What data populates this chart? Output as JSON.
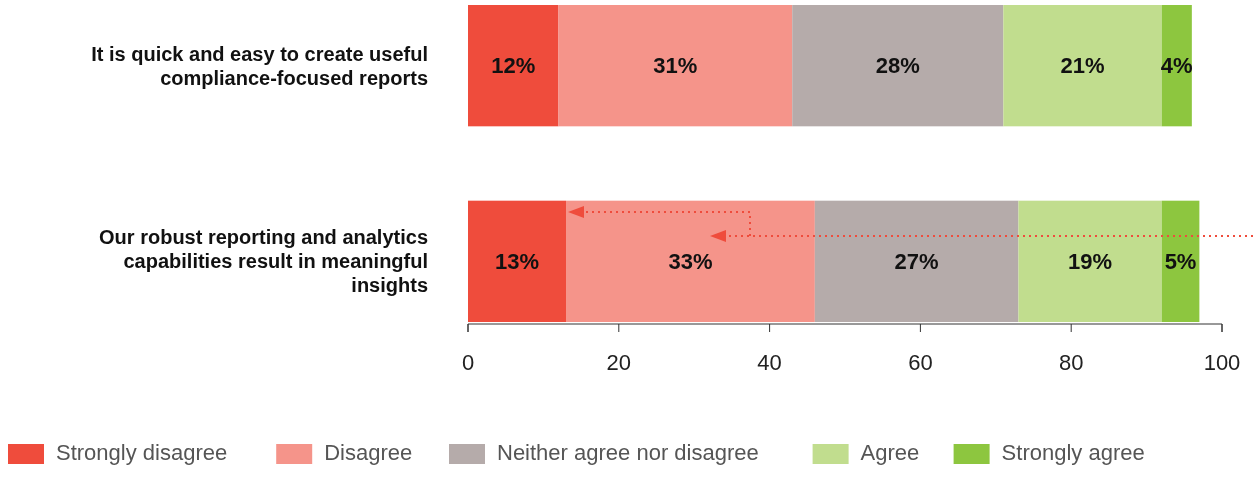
{
  "chart_data": {
    "type": "bar",
    "orientation": "horizontal",
    "stacked": true,
    "categories": [
      "It is quick and easy to create useful compliance-focused reports",
      "Our robust reporting and analytics capabilities result in meaningful insights"
    ],
    "series": [
      {
        "name": "Strongly disagree",
        "color": "#ef4c3c",
        "values": [
          12,
          13
        ],
        "value_labels": [
          "12%",
          "13%"
        ]
      },
      {
        "name": "Disagree",
        "color": "#f5948a",
        "values": [
          31,
          33
        ],
        "value_labels": [
          "31%",
          "33%"
        ]
      },
      {
        "name": "Neither agree nor disagree",
        "color": "#b5abaa",
        "values": [
          28,
          27
        ],
        "value_labels": [
          "28%",
          "27%"
        ]
      },
      {
        "name": "Agree",
        "color": "#c1dd8e",
        "values": [
          21,
          19
        ],
        "value_labels": [
          "21%",
          "19%"
        ]
      },
      {
        "name": "Strongly agree",
        "color": "#8dc63f",
        "values": [
          4,
          5
        ],
        "value_labels": [
          "4%",
          "5%"
        ]
      }
    ],
    "xlim": [
      0,
      100
    ],
    "xticks": [
      0,
      20,
      40,
      60,
      80,
      100
    ],
    "grid": false,
    "legend": "bottom"
  }
}
